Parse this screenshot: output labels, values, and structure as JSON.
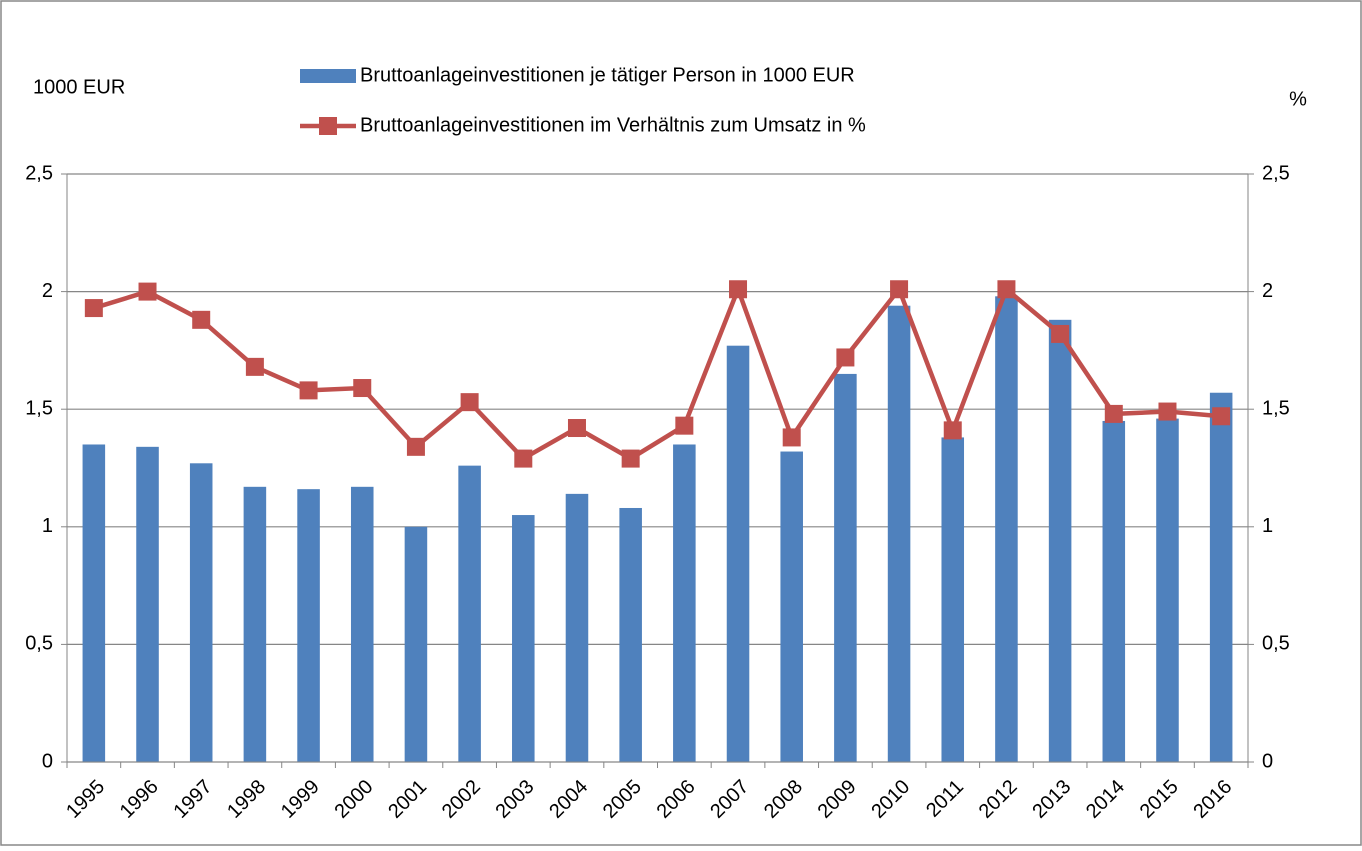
{
  "chart_data": {
    "type": "bar_line",
    "y_label": "1000 EUR",
    "y2_label": "%",
    "categories": [
      "1995",
      "1996",
      "1997",
      "1998",
      "1999",
      "2000",
      "2001",
      "2002",
      "2003",
      "2004",
      "2005",
      "2006",
      "2007",
      "2008",
      "2009",
      "2010",
      "2011",
      "2012",
      "2013",
      "2014",
      "2015",
      "2016"
    ],
    "series": [
      {
        "name": "Bruttoanlageinvestitionen je tätiger Person in 1000 EUR",
        "type": "bar",
        "color": "#4f81bd",
        "values": [
          1.35,
          1.34,
          1.27,
          1.17,
          1.16,
          1.17,
          1.0,
          1.26,
          1.05,
          1.14,
          1.08,
          1.35,
          1.77,
          1.32,
          1.65,
          1.94,
          1.38,
          1.98,
          1.88,
          1.45,
          1.46,
          1.57
        ]
      },
      {
        "name": "Bruttoanlageinvestitionen im Verhältnis zum Umsatz in %",
        "type": "line",
        "color": "#c0504d",
        "axis": "y2",
        "values": [
          1.93,
          2.0,
          1.88,
          1.68,
          1.58,
          1.59,
          1.34,
          1.53,
          1.29,
          1.42,
          1.29,
          1.43,
          2.01,
          1.38,
          1.72,
          2.01,
          1.41,
          2.01,
          1.82,
          1.48,
          1.49,
          1.47
        ]
      }
    ],
    "ylim": [
      0,
      2.5
    ],
    "yticks": [
      0,
      {
        "value": 0.5,
        "label": "0,5"
      },
      1,
      {
        "value": 1.5,
        "label": "1,5"
      },
      2,
      {
        "value": 2.5,
        "label": "2,5"
      }
    ],
    "y2lim": [
      0,
      2.5
    ],
    "y2ticks": [
      0,
      {
        "value": 0.5,
        "label": "0,5"
      },
      1,
      {
        "value": 1.5,
        "label": "1,5"
      },
      2,
      {
        "value": 2.5,
        "label": "2,5"
      }
    ],
    "grid": true,
    "legend": "top"
  }
}
